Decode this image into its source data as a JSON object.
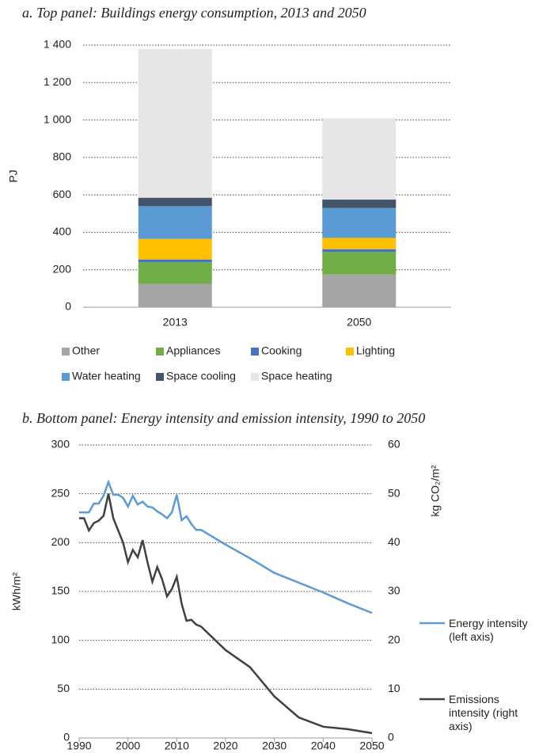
{
  "chart_data": [
    {
      "type": "bar",
      "stacked": true,
      "title": "a.   Top panel: Buildings energy consumption, 2013 and 2050",
      "y_label": "PJ",
      "categories": [
        "2013",
        "2050"
      ],
      "series": [
        {
          "name": "Other",
          "color": "#a5a5a5",
          "values": [
            125,
            175
          ]
        },
        {
          "name": "Appliances",
          "color": "#70ad47",
          "values": [
            115,
            120
          ]
        },
        {
          "name": "Cooking",
          "color": "#4472c4",
          "values": [
            15,
            15
          ]
        },
        {
          "name": "Lighting",
          "color": "#ffc000",
          "values": [
            110,
            60
          ]
        },
        {
          "name": "Water heating",
          "color": "#5b9bd5",
          "values": [
            175,
            160
          ]
        },
        {
          "name": "Space cooling",
          "color": "#44546a",
          "values": [
            45,
            45
          ]
        },
        {
          "name": "Space heating",
          "color": "#e6e6e6",
          "values": [
            795,
            435
          ]
        }
      ],
      "ylim": [
        0,
        1400
      ],
      "yticks": [
        0,
        200,
        400,
        600,
        800,
        {
          "value": 1000,
          "label": "1 000"
        },
        {
          "value": 1200,
          "label": "1 200"
        },
        {
          "value": 1400,
          "label": "1 400"
        }
      ],
      "grid": true,
      "legend": "bottom"
    },
    {
      "type": "line",
      "title": "b.   Bottom panel: Energy intensity and emission intensity, 1990 to 2050",
      "y_label": "kWh/m²",
      "y2_label": "kg CO₂/m²",
      "x": [
        1990,
        1991,
        1992,
        1993,
        1994,
        1995,
        1996,
        1997,
        1998,
        1999,
        2000,
        2001,
        2002,
        2003,
        2004,
        2005,
        2006,
        2007,
        2008,
        2009,
        2010,
        2011,
        2012,
        2013,
        2014,
        2015,
        2020,
        2025,
        2030,
        2035,
        2040,
        2045,
        2050
      ],
      "series": [
        {
          "name": "Energy intensity (left axis)",
          "color": "#5b9bd5",
          "axis": "y",
          "values": [
            231,
            231,
            231,
            240,
            240,
            248,
            262,
            249,
            249,
            246,
            237,
            248,
            239,
            242,
            237,
            236,
            232,
            229,
            225,
            231,
            249,
            223,
            227,
            219,
            213,
            213,
            198,
            184,
            169,
            159,
            149,
            138,
            128
          ]
        },
        {
          "name": "Emissions intensity (right axis)",
          "color": "#404040",
          "axis": "y2",
          "values": [
            45,
            45,
            42.5,
            44,
            44.5,
            45.5,
            50,
            45,
            42.5,
            40,
            36,
            38.5,
            37,
            40.5,
            36,
            32,
            35,
            32.5,
            29,
            30.5,
            33,
            27.5,
            24,
            24.2,
            23.2,
            22.8,
            18,
            14.5,
            8.5,
            4.2,
            2.3,
            1.8,
            1
          ]
        }
      ],
      "xlim": [
        1990,
        2050
      ],
      "xticks": [
        1990,
        2000,
        2010,
        2020,
        2030,
        2040,
        2050
      ],
      "ylim": [
        0,
        300
      ],
      "yticks": [
        0,
        50,
        100,
        150,
        200,
        250,
        300
      ],
      "y2lim": [
        0,
        60
      ],
      "y2ticks": [
        0,
        10,
        20,
        30,
        40,
        50,
        60
      ],
      "grid": true,
      "legend": "right"
    }
  ]
}
